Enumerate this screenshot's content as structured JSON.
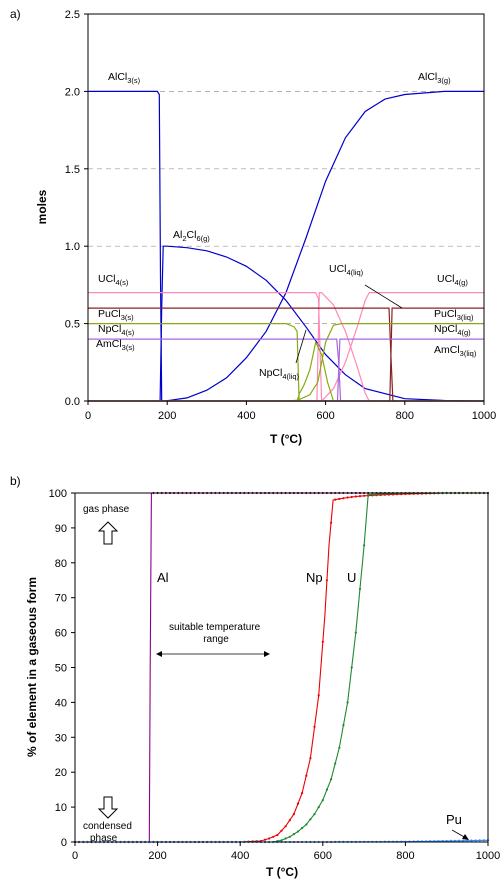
{
  "chart_data": [
    {
      "panel": "a)",
      "type": "line",
      "xlabel": "T (°C)",
      "ylabel": "moles",
      "xlim": [
        0,
        1000
      ],
      "ylim": [
        0,
        2.5
      ],
      "xticks": [
        0,
        200,
        400,
        600,
        800,
        1000
      ],
      "yticks": [
        0.0,
        0.5,
        1.0,
        1.5,
        2.0,
        2.5
      ],
      "ytick_labels": [
        "0.0",
        "0.5",
        "1.0",
        "1.5",
        "2.0",
        "2.5"
      ],
      "grid": "horizontal dashed",
      "series": [
        {
          "name": "AlCl3(s)",
          "color": "#0000cc",
          "x": [
            0,
            175,
            180,
            183,
            186,
            1000
          ],
          "y": [
            2.0,
            2.0,
            1.98,
            0.8,
            0.0,
            0.0
          ]
        },
        {
          "name": "Al2Cl6(g)",
          "color": "#0000cc",
          "x": [
            182,
            186,
            190,
            200,
            250,
            300,
            350,
            400,
            450,
            500,
            550,
            600,
            650,
            700,
            800,
            900,
            1000
          ],
          "y": [
            0.0,
            0.6,
            1.0,
            1.0,
            0.99,
            0.97,
            0.93,
            0.87,
            0.78,
            0.65,
            0.48,
            0.3,
            0.17,
            0.08,
            0.015,
            0.003,
            0.0
          ]
        },
        {
          "name": "AlCl3(g)",
          "color": "#0000cc",
          "x": [
            0,
            180,
            200,
            250,
            300,
            350,
            400,
            450,
            500,
            550,
            600,
            650,
            700,
            750,
            800,
            900,
            1000
          ],
          "y": [
            0.0,
            0.0,
            0.002,
            0.02,
            0.07,
            0.15,
            0.28,
            0.45,
            0.7,
            1.05,
            1.42,
            1.7,
            1.87,
            1.95,
            1.98,
            2.0,
            2.0
          ]
        },
        {
          "name": "UCl4(s)",
          "color": "#ff88bb",
          "x": [
            0,
            575,
            582,
            590,
            1000
          ],
          "y": [
            0.7,
            0.7,
            0.66,
            0.0,
            0.0
          ]
        },
        {
          "name": "UCl4(liq)",
          "color": "#ff88bb",
          "x": [
            0,
            578,
            584,
            590,
            620,
            650,
            680,
            700,
            710,
            1000
          ],
          "y": [
            0.0,
            0.0,
            0.7,
            0.7,
            0.62,
            0.45,
            0.22,
            0.05,
            0.0,
            0.0
          ]
        },
        {
          "name": "UCl4(g)",
          "color": "#ff88bb",
          "x": [
            0,
            590,
            620,
            650,
            680,
            700,
            710,
            1000
          ],
          "y": [
            0.0,
            0.0,
            0.08,
            0.25,
            0.48,
            0.65,
            0.7,
            0.7
          ]
        },
        {
          "name": "PuCl3(s)",
          "color": "#882222",
          "x": [
            0,
            760,
            765,
            770,
            1000
          ],
          "y": [
            0.6,
            0.6,
            0.3,
            0.0,
            0.0
          ]
        },
        {
          "name": "PuCl3(liq)",
          "color": "#882222",
          "x": [
            0,
            762,
            768,
            775,
            1000
          ],
          "y": [
            0.0,
            0.0,
            0.6,
            0.6,
            0.6
          ]
        },
        {
          "name": "NpCl4(s)",
          "color": "#88aa11",
          "x": [
            0,
            500,
            520,
            528,
            533,
            1000
          ],
          "y": [
            0.5,
            0.5,
            0.48,
            0.45,
            0.0,
            0.0
          ]
        },
        {
          "name": "NpCl4(liq)",
          "color": "#88aa11",
          "x": [
            0,
            528,
            534,
            545,
            560,
            575,
            590,
            605,
            620,
            1000
          ],
          "y": [
            0.0,
            0.0,
            0.05,
            0.1,
            0.2,
            0.38,
            0.3,
            0.12,
            0.0,
            0.0
          ]
        },
        {
          "name": "NpCl4(g)",
          "color": "#88aa11",
          "x": [
            0,
            500,
            530,
            560,
            580,
            600,
            620,
            640,
            1000
          ],
          "y": [
            0.0,
            0.0,
            0.005,
            0.04,
            0.12,
            0.38,
            0.49,
            0.5,
            0.5
          ]
        },
        {
          "name": "AmCl3(s)",
          "color": "#aa66dd",
          "x": [
            0,
            628,
            633,
            638,
            1000
          ],
          "y": [
            0.4,
            0.4,
            0.25,
            0.0,
            0.0
          ]
        },
        {
          "name": "AmCl3(liq)",
          "color": "#aa66dd",
          "x": [
            0,
            630,
            636,
            642,
            1000
          ],
          "y": [
            0.0,
            0.0,
            0.4,
            0.4,
            0.4
          ]
        }
      ],
      "labels": [
        {
          "base": "AlCl",
          "sub": "3(s)"
        },
        {
          "base": "AlCl",
          "sub": "3(g)"
        },
        {
          "base": "Al",
          "sub": "2",
          "base2": "Cl",
          "sub2": "6(g)"
        },
        {
          "base": "UCl",
          "sub": "4(s)"
        },
        {
          "base": "UCl",
          "sub": "4(liq)"
        },
        {
          "base": "UCl",
          "sub": "4(g)"
        },
        {
          "base": "PuCl",
          "sub": "3(s)"
        },
        {
          "base": "PuCl",
          "sub": "3(liq)"
        },
        {
          "base": "NpCl",
          "sub": "4(s)"
        },
        {
          "base": "NpCl",
          "sub": "4(g)"
        },
        {
          "base": "AmCl",
          "sub": "3(s)"
        },
        {
          "base": "AmCl",
          "sub": "3(liq)"
        },
        {
          "base": "NpCl",
          "sub": "4(liq)"
        }
      ]
    },
    {
      "panel": "b)",
      "type": "line",
      "xlabel": "T (°C)",
      "ylabel": "% of element in a gaseous form",
      "xlim": [
        0,
        1000
      ],
      "ylim": [
        0,
        100
      ],
      "xticks": [
        0,
        200,
        400,
        600,
        800,
        1000
      ],
      "yticks": [
        0,
        10,
        20,
        30,
        40,
        50,
        60,
        70,
        80,
        90,
        100
      ],
      "grid": "none",
      "series": [
        {
          "name": "Al",
          "color": "#880088",
          "x": [
            0,
            100,
            180,
            182,
            185,
            190,
            250,
            300,
            400,
            500,
            600,
            700,
            800,
            900,
            1000
          ],
          "y": [
            0,
            0,
            0,
            50,
            100,
            100,
            100,
            100,
            100,
            100,
            100,
            100,
            100,
            100,
            100
          ]
        },
        {
          "name": "Np",
          "color": "#ee0000",
          "x": [
            0,
            100,
            200,
            300,
            400,
            450,
            470,
            490,
            510,
            530,
            550,
            570,
            590,
            605,
            615,
            625,
            640,
            660,
            680,
            700,
            750,
            800,
            900,
            1000
          ],
          "y": [
            0,
            0,
            0,
            0,
            0,
            0.3,
            1,
            2,
            4.5,
            8,
            14,
            24,
            42,
            65,
            85,
            98,
            98.3,
            98.7,
            99,
            99.2,
            99.5,
            99.7,
            100,
            100
          ]
        },
        {
          "name": "U",
          "color": "#228833",
          "x": [
            0,
            100,
            200,
            300,
            400,
            480,
            500,
            520,
            540,
            560,
            580,
            600,
            620,
            640,
            660,
            680,
            700,
            710,
            750,
            800,
            900,
            1000
          ],
          "y": [
            0,
            0,
            0,
            0,
            0,
            0,
            0.5,
            1.5,
            3,
            5,
            8,
            12,
            18,
            27,
            40,
            60,
            85,
            99.5,
            99.8,
            100,
            100,
            100
          ]
        },
        {
          "name": "Pu",
          "color": "#3388ff",
          "x": [
            0,
            200,
            400,
            600,
            800,
            900,
            1000
          ],
          "y": [
            0,
            0,
            0,
            0,
            0.1,
            0.3,
            0.5
          ]
        }
      ],
      "annotations": {
        "gas_phase": "gas phase",
        "condensed_phase": "condensed\nphase",
        "suitable_range": "suitable temperature\nrange",
        "label_al": "Al",
        "label_np": "Np",
        "label_u": "U",
        "label_pu": "Pu"
      }
    }
  ]
}
